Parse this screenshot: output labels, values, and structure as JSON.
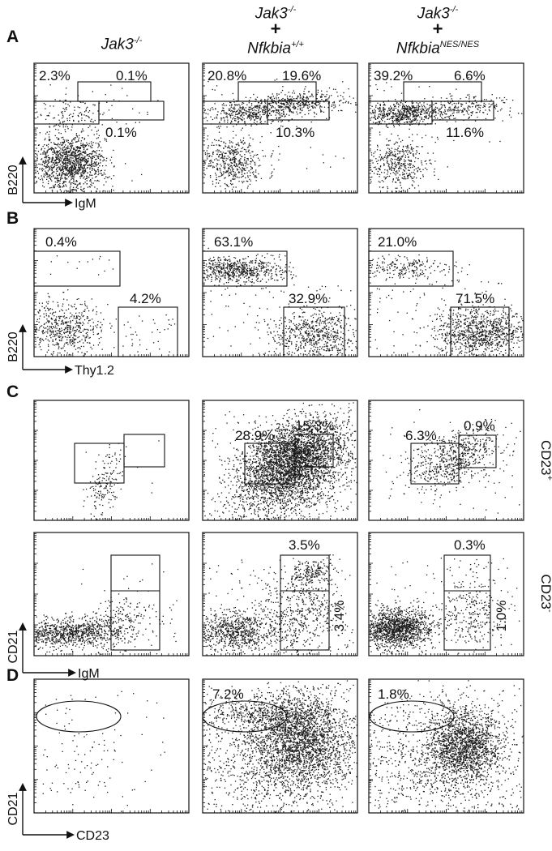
{
  "panels": {
    "a": "A",
    "b": "B",
    "c": "C",
    "d": "D"
  },
  "headers": [
    {
      "gene1": "Jak3",
      "sup1": "-/-"
    },
    {
      "gene1": "Jak3",
      "sup1": "-/-",
      "plus": "+",
      "gene2": "Nfkbia",
      "sup2": "+/+"
    },
    {
      "gene1": "Jak3",
      "sup1": "-/-",
      "plus": "+",
      "gene2": "Nfkbia",
      "sup2": "NES/NES"
    }
  ],
  "axes": {
    "a": {
      "y": "B220",
      "x": "IgM"
    },
    "b": {
      "y": "B220",
      "x": "Thy1.2"
    },
    "c": {
      "y": "CD21",
      "x": "IgM"
    },
    "d": {
      "y": "CD21",
      "x": "CD23"
    }
  },
  "row_labels": {
    "c_top": {
      "base": "CD23",
      "sup": "+"
    },
    "c_bottom": {
      "base": "CD23",
      "sup": "-"
    }
  },
  "percentages": {
    "a": [
      {
        "tl": "2.3%",
        "tr": "0.1%",
        "br": "0.1%"
      },
      {
        "tl": "20.8%",
        "tr": "19.6%",
        "br": "10.3%"
      },
      {
        "tl": "39.2%",
        "tr": "6.6%",
        "br": "11.6%"
      }
    ],
    "b": [
      {
        "top": "0.4%",
        "bottom": "4.2%"
      },
      {
        "top": "63.1%",
        "bottom": "32.9%"
      },
      {
        "top": "21.0%",
        "bottom": "71.5%"
      }
    ],
    "c_top": [
      {
        "left": "",
        "right": ""
      },
      {
        "left": "28.9%",
        "right": "15.3%"
      },
      {
        "left": "6.3%",
        "right": "0.9%"
      }
    ],
    "c_bottom": [
      {
        "upper": "",
        "lower": ""
      },
      {
        "upper": "3.5%",
        "lower": "3.4%"
      },
      {
        "upper": "0.3%",
        "lower": "1.0%"
      }
    ],
    "d": [
      {
        "gate": ""
      },
      {
        "gate": "7.2%"
      },
      {
        "gate": "1.8%"
      }
    ]
  },
  "colors": {
    "ink": "#111111",
    "dots": "#1a1a1a",
    "background": "#ffffff"
  }
}
